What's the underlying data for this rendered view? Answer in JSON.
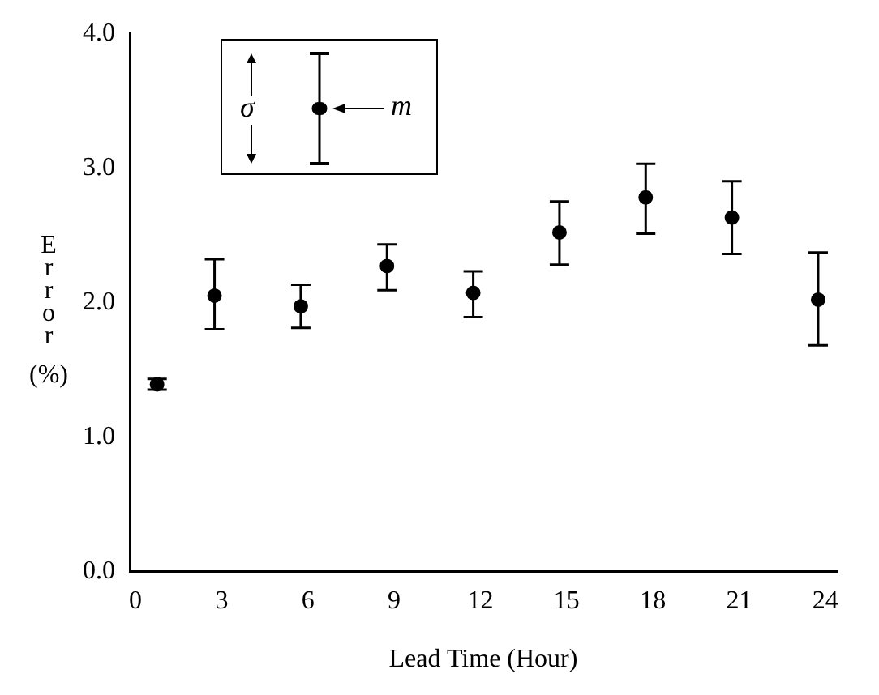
{
  "chart_data": {
    "type": "scatter",
    "xlabel": "Lead Time (Hour)",
    "ylabel": "Error (%)",
    "annotations": [
      "σ",
      "m"
    ],
    "x": [
      0.75,
      2.75,
      5.75,
      8.75,
      11.75,
      14.75,
      17.75,
      20.75,
      23.75
    ],
    "series": [
      {
        "color": "#000000",
        "values": [
          1.39,
          2.05,
          1.97,
          2.27,
          2.07,
          2.52,
          2.78,
          2.63,
          2.02
        ],
        "errors": [
          [
            1.35,
            1.43
          ],
          [
            1.8,
            2.32
          ],
          [
            1.81,
            2.13
          ],
          [
            2.09,
            2.43
          ],
          [
            1.89,
            2.23
          ],
          [
            2.28,
            2.75
          ],
          [
            2.51,
            3.03
          ],
          [
            2.36,
            2.9
          ],
          [
            1.68,
            2.37
          ]
        ]
      }
    ],
    "xlim": [
      -0.2,
      24.4
    ],
    "ylim": [
      0,
      4
    ],
    "xticks": [
      0,
      3,
      6,
      9,
      12,
      15,
      18,
      21,
      24
    ],
    "yticks": [
      {
        "value": 0,
        "label": "0.0"
      },
      {
        "value": 1,
        "label": "1.0"
      },
      {
        "value": 2,
        "label": "2.0"
      },
      {
        "value": 3,
        "label": "3.0"
      },
      {
        "value": 4,
        "label": "4.0"
      }
    ],
    "grid": false,
    "marker": "circle"
  }
}
